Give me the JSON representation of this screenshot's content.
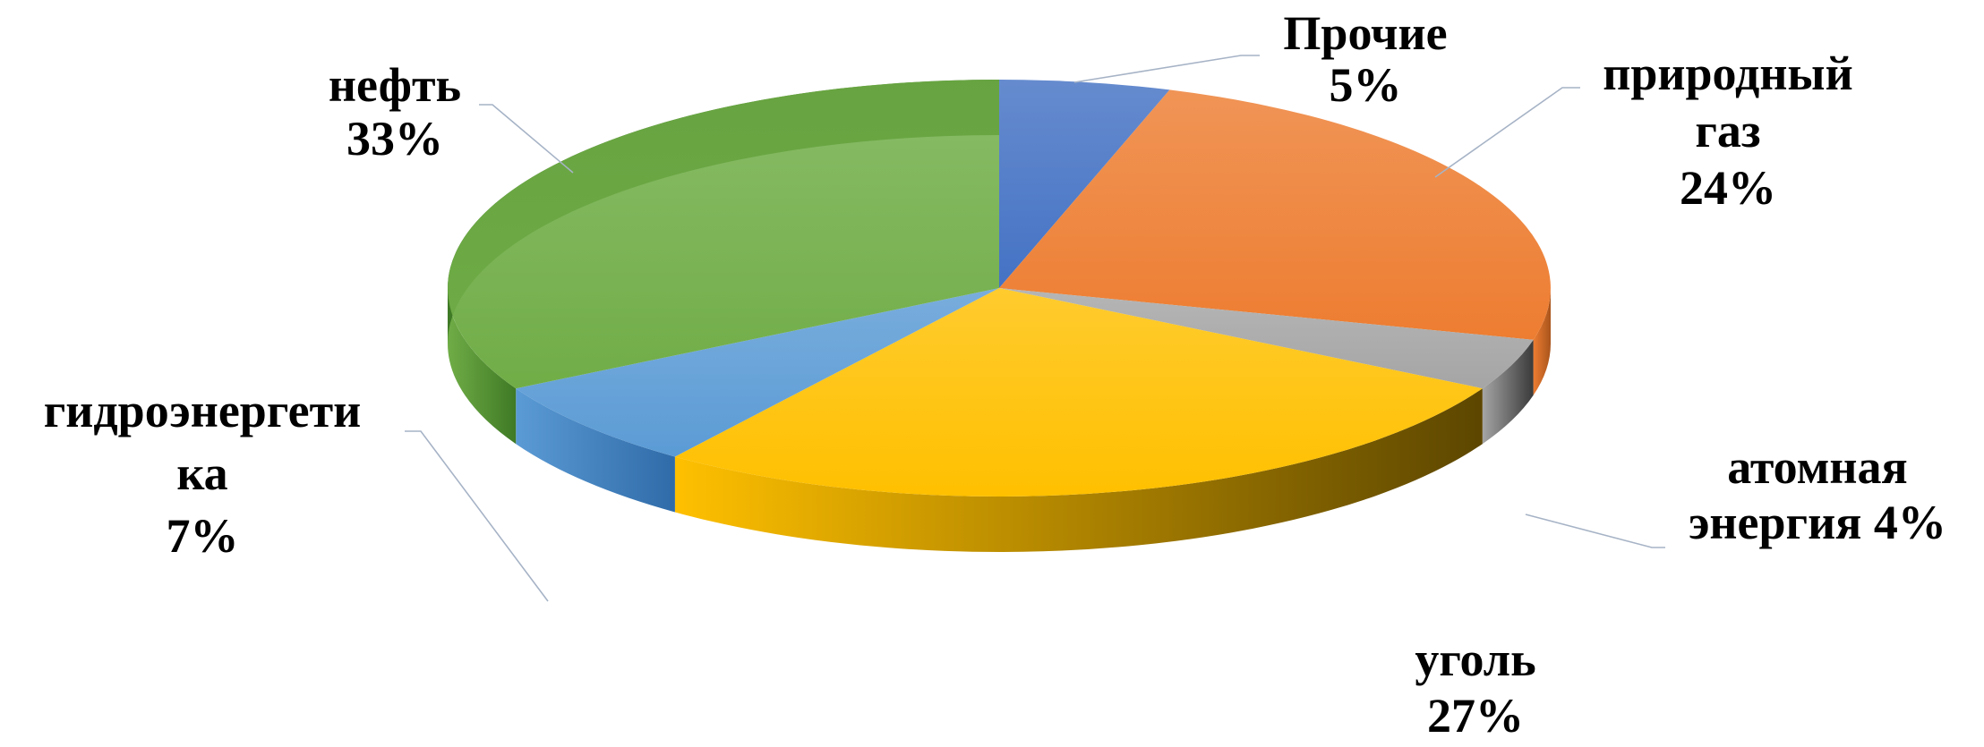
{
  "chart_data": {
    "type": "pie",
    "title": "",
    "style": "3d-exploded-none",
    "slices": [
      {
        "name": "Прочие",
        "value": 5,
        "label_lines": [
          "Прочие",
          "5%"
        ],
        "color": "#4472C4",
        "dark": "#2A4A86"
      },
      {
        "name": "природный газ",
        "value": 24,
        "label_lines": [
          "природный",
          "газ",
          "24%"
        ],
        "color": "#ED7D31",
        "dark": "#A9541C"
      },
      {
        "name": "атомная энергия",
        "value": 4,
        "label_lines": [
          "атомная",
          "энергия 4%"
        ],
        "color": "#A5A5A5",
        "dark": "#3A3A3A"
      },
      {
        "name": "уголь",
        "value": 27,
        "label_lines": [
          "уголь",
          "27%"
        ],
        "color": "#FFC000",
        "dark": "#5C4600"
      },
      {
        "name": "гидроэнергетика",
        "value": 7,
        "label_lines": [
          "гидроэнергети",
          "ка",
          "7%"
        ],
        "color": "#5B9BD5",
        "dark": "#2F6BA8"
      },
      {
        "name": "нефть",
        "value": 33,
        "label_lines": [
          "нефть",
          "33%"
        ],
        "color": "#70AD47",
        "dark": "#3F7A25"
      }
    ]
  }
}
